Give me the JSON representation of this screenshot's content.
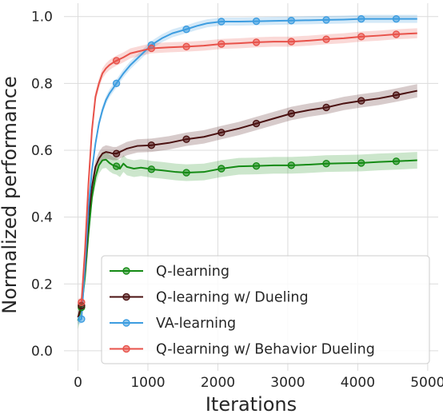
{
  "chart_data": {
    "type": "line",
    "xlabel": "Iterations",
    "ylabel": "Normalized performance",
    "xlim": [
      -200,
      5150
    ],
    "ylim": [
      -0.06,
      1.04
    ],
    "xticks": [
      0,
      1000,
      2000,
      3000,
      4000,
      5000
    ],
    "yticks": [
      0.0,
      0.2,
      0.4,
      0.6,
      0.8,
      1.0
    ],
    "xtick_labels": [
      "0",
      "1000",
      "2000",
      "3000",
      "4000",
      "5000"
    ],
    "ytick_labels": [
      "0.0",
      "0.2",
      "0.4",
      "0.6",
      "0.8",
      "1.0"
    ],
    "grid": true,
    "legend_position": "lower-right",
    "series": [
      {
        "name": "Q-learning",
        "color": "#158b15",
        "band": 0.025,
        "points": [
          [
            0,
            0.09
          ],
          [
            50,
            0.13
          ],
          [
            100,
            0.22
          ],
          [
            150,
            0.35
          ],
          [
            200,
            0.46
          ],
          [
            250,
            0.52
          ],
          [
            300,
            0.555
          ],
          [
            350,
            0.57
          ],
          [
            400,
            0.572
          ],
          [
            450,
            0.562
          ],
          [
            500,
            0.555
          ],
          [
            550,
            0.552
          ],
          [
            600,
            0.545
          ],
          [
            650,
            0.56
          ],
          [
            700,
            0.55
          ],
          [
            800,
            0.545
          ],
          [
            900,
            0.548
          ],
          [
            1000,
            0.545
          ],
          [
            1050,
            0.543
          ],
          [
            1200,
            0.54
          ],
          [
            1400,
            0.535
          ],
          [
            1550,
            0.533
          ],
          [
            1800,
            0.535
          ],
          [
            2050,
            0.545
          ],
          [
            2300,
            0.552
          ],
          [
            2550,
            0.553
          ],
          [
            2800,
            0.555
          ],
          [
            3050,
            0.555
          ],
          [
            3300,
            0.557
          ],
          [
            3550,
            0.56
          ],
          [
            3800,
            0.561
          ],
          [
            4050,
            0.562
          ],
          [
            4300,
            0.565
          ],
          [
            4550,
            0.567
          ],
          [
            4850,
            0.57
          ]
        ],
        "markers": [
          50,
          550,
          1050,
          1550,
          2050,
          2550,
          3050,
          3550,
          4050,
          4550
        ]
      },
      {
        "name": "Q-learning w/ Dueling",
        "color": "#4a1111",
        "band": 0.02,
        "points": [
          [
            0,
            0.1
          ],
          [
            50,
            0.135
          ],
          [
            100,
            0.24
          ],
          [
            150,
            0.4
          ],
          [
            200,
            0.49
          ],
          [
            250,
            0.55
          ],
          [
            300,
            0.575
          ],
          [
            350,
            0.59
          ],
          [
            400,
            0.595
          ],
          [
            450,
            0.593
          ],
          [
            500,
            0.59
          ],
          [
            550,
            0.59
          ],
          [
            700,
            0.605
          ],
          [
            850,
            0.613
          ],
          [
            1050,
            0.615
          ],
          [
            1300,
            0.622
          ],
          [
            1550,
            0.633
          ],
          [
            1800,
            0.64
          ],
          [
            2050,
            0.653
          ],
          [
            2300,
            0.665
          ],
          [
            2550,
            0.68
          ],
          [
            2800,
            0.695
          ],
          [
            3050,
            0.71
          ],
          [
            3300,
            0.72
          ],
          [
            3550,
            0.728
          ],
          [
            3800,
            0.74
          ],
          [
            4050,
            0.748
          ],
          [
            4300,
            0.755
          ],
          [
            4550,
            0.765
          ],
          [
            4850,
            0.778
          ]
        ],
        "markers": [
          50,
          550,
          1050,
          1550,
          2050,
          2550,
          3050,
          3550,
          4050,
          4550
        ]
      },
      {
        "name": "VA-learning",
        "color": "#3d9de0",
        "band": 0.012,
        "points": [
          [
            0,
            0.09
          ],
          [
            50,
            0.095
          ],
          [
            100,
            0.25
          ],
          [
            150,
            0.43
          ],
          [
            200,
            0.54
          ],
          [
            250,
            0.62
          ],
          [
            300,
            0.68
          ],
          [
            350,
            0.72
          ],
          [
            400,
            0.75
          ],
          [
            450,
            0.77
          ],
          [
            500,
            0.785
          ],
          [
            550,
            0.8
          ],
          [
            650,
            0.83
          ],
          [
            750,
            0.855
          ],
          [
            850,
            0.875
          ],
          [
            950,
            0.895
          ],
          [
            1050,
            0.915
          ],
          [
            1200,
            0.935
          ],
          [
            1350,
            0.95
          ],
          [
            1550,
            0.962
          ],
          [
            1700,
            0.972
          ],
          [
            1850,
            0.98
          ],
          [
            2050,
            0.985
          ],
          [
            2300,
            0.985
          ],
          [
            2550,
            0.986
          ],
          [
            2800,
            0.987
          ],
          [
            3050,
            0.988
          ],
          [
            3300,
            0.989
          ],
          [
            3550,
            0.99
          ],
          [
            3800,
            0.991
          ],
          [
            4050,
            0.993
          ],
          [
            4300,
            0.993
          ],
          [
            4550,
            0.993
          ],
          [
            4850,
            0.993
          ]
        ],
        "markers": [
          50,
          550,
          1050,
          1550,
          2050,
          2550,
          3050,
          3550,
          4050,
          4550
        ]
      },
      {
        "name": "Q-learning w/ Behavior Dueling",
        "color": "#e8524a",
        "band": 0.015,
        "points": [
          [
            0,
            0.14
          ],
          [
            50,
            0.145
          ],
          [
            100,
            0.3
          ],
          [
            150,
            0.5
          ],
          [
            200,
            0.66
          ],
          [
            250,
            0.76
          ],
          [
            300,
            0.8
          ],
          [
            350,
            0.83
          ],
          [
            400,
            0.845
          ],
          [
            450,
            0.855
          ],
          [
            500,
            0.862
          ],
          [
            550,
            0.868
          ],
          [
            650,
            0.878
          ],
          [
            750,
            0.89
          ],
          [
            850,
            0.895
          ],
          [
            950,
            0.9
          ],
          [
            1050,
            0.905
          ],
          [
            1300,
            0.908
          ],
          [
            1550,
            0.91
          ],
          [
            1800,
            0.913
          ],
          [
            2050,
            0.918
          ],
          [
            2300,
            0.92
          ],
          [
            2550,
            0.923
          ],
          [
            2800,
            0.925
          ],
          [
            3050,
            0.925
          ],
          [
            3300,
            0.928
          ],
          [
            3550,
            0.932
          ],
          [
            3800,
            0.935
          ],
          [
            4050,
            0.94
          ],
          [
            4300,
            0.943
          ],
          [
            4550,
            0.947
          ],
          [
            4850,
            0.95
          ]
        ],
        "markers": [
          50,
          550,
          1050,
          1550,
          2050,
          2550,
          3050,
          3550,
          4050,
          4550
        ]
      }
    ]
  }
}
